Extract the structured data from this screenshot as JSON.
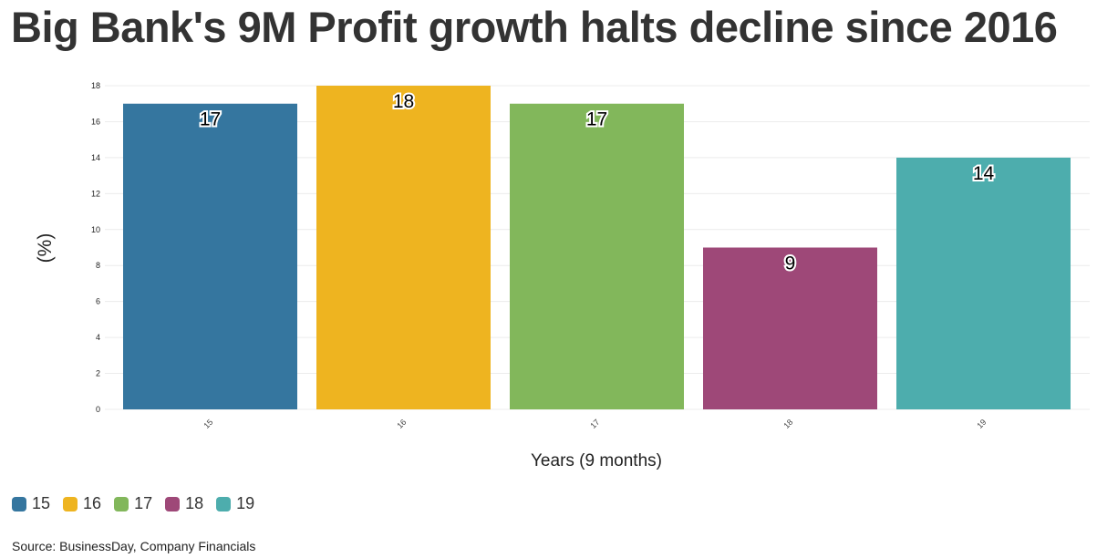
{
  "chart_data": {
    "type": "bar",
    "title": "Big Bank's 9M Profit growth halts decline since 2016",
    "xlabel": "Years (9 months)",
    "ylabel": "(%)",
    "categories": [
      "15",
      "16",
      "17",
      "18",
      "19"
    ],
    "values": [
      17,
      18,
      17,
      9,
      14
    ],
    "colors": [
      "#35769f",
      "#eeb420",
      "#82b75b",
      "#9e4878",
      "#4dadad"
    ],
    "ylim": [
      0,
      18
    ],
    "yticks": [
      0,
      2,
      4,
      6,
      8,
      10,
      12,
      14,
      16,
      18
    ],
    "grid": true,
    "legend_placement": "bottom-left",
    "source": "Source: BusinessDay, Company Financials"
  }
}
